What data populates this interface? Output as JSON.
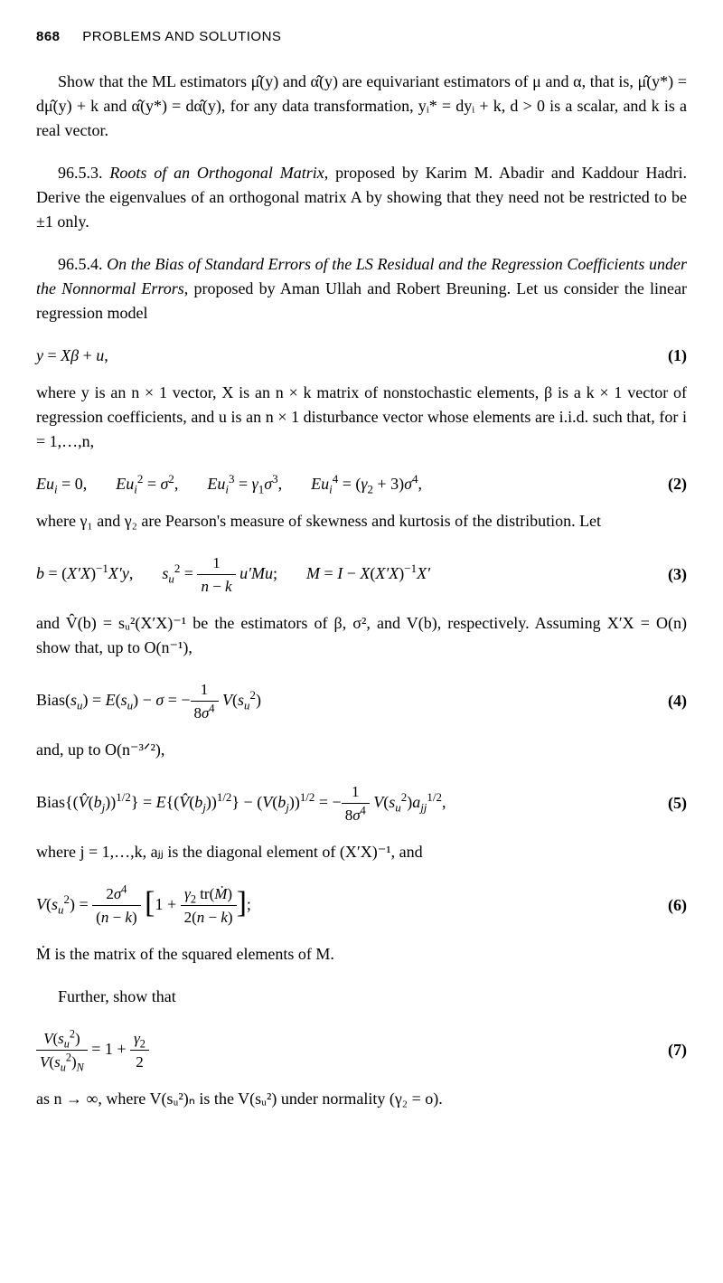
{
  "header": {
    "page_number": "868",
    "running_title": "PROBLEMS AND SOLUTIONS"
  },
  "para1": "Show that the ML estimators μ̂(y) and α̂(y) are equivariant estimators of μ and α, that is, μ̂(y*) = dμ̂(y) + k and α̂(y*) = dα̂(y), for any data transformation, yᵢ* = dyᵢ + k, d > 0 is a scalar, and k is a real vector.",
  "p9653_label": "96.5.3.",
  "p9653_title": "Roots of an Orthogonal Matrix",
  "p9653_body": ", proposed by Karim M. Abadir and Kaddour Hadri. Derive the eigenvalues of an orthogonal matrix A by showing that they need not be restricted to be ±1 only.",
  "p9654_label": "96.5.4.",
  "p9654_title": "On the Bias of Standard Errors of the LS Residual and the Regression Coefficients under the Nonnormal Errors",
  "p9654_body": ", proposed by Aman Ullah and Robert Breuning. Let us consider the linear regression model",
  "eq1_html": "<i>y</i> = <i>Xβ</i> + <i>u</i>,",
  "eq1_num": "(1)",
  "para_after1": "where y is an n × 1 vector, X is an n × k matrix of nonstochastic elements, β is a k × 1 vector of regression coefficients, and u is an n × 1 disturbance vector whose elements are i.i.d. such that, for i = 1,…,n,",
  "eq2_html": "<i>Eu<sub>i</sub></i> = 0,<span class=\"gap\"></span><i>Eu<sub>i</sub></i><sup>2</sup> = <i>σ</i><sup>2</sup>,<span class=\"gap\"></span><i>Eu<sub>i</sub></i><sup>3</sup> = <i>γ</i><sub>1</sub><i>σ</i><sup>3</sup>,<span class=\"gap\"></span><i>Eu<sub>i</sub></i><sup>4</sup> = (<i>γ</i><sub>2</sub> + 3)<i>σ</i><sup>4</sup>,",
  "eq2_num": "(2)",
  "para_after2": "where γ₁ and γ₂ are Pearson's measure of skewness and kurtosis of the distribution. Let",
  "eq3_html": "<i>b</i> = (<i>X′X</i>)<sup>−1</sup><i>X′y</i>,<span class=\"gap\"></span><i>s<sub>u</sub></i><sup>2</sup> = <span class=\"frac\"><span class=\"num\">1</span><span class=\"den\"><i>n</i> − <i>k</i></span></span>&nbsp;<i>u′Mu</i>;<span class=\"gap\"></span><i>M</i> = <i>I</i> − <i>X</i>(<i>X′X</i>)<sup>−1</sup><i>X′</i>",
  "eq3_num": "(3)",
  "para_after3": "and V̂(b) = sᵤ²(X′X)⁻¹ be the estimators of β, σ², and V(b), respectively. Assuming X′X = O(n) show that, up to O(n⁻¹),",
  "eq4_html": "Bias(<i>s<sub>u</sub></i>) = <i>E</i>(<i>s<sub>u</sub></i>) − <i>σ</i> = −<span class=\"frac\"><span class=\"num\">1</span><span class=\"den\">8<i>σ</i><sup>4</sup></span></span>&nbsp;<i>V</i>(<i>s<sub>u</sub></i><sup>2</sup>)",
  "eq4_num": "(4)",
  "para_after4": "and, up to O(n⁻³ᐟ²),",
  "eq5_html": "Bias{(<i>V̂</i>(<i>b<sub>j</sub></i>))<sup>1/2</sup>} = <i>E</i>{(<i>V̂</i>(<i>b<sub>j</sub></i>))<sup>1/2</sup>} − (<i>V</i>(<i>b<sub>j</sub></i>))<sup>1/2</sup> = −<span class=\"frac\"><span class=\"num\">1</span><span class=\"den\">8<i>σ</i><sup>4</sup></span></span>&nbsp;<i>V</i>(<i>s<sub>u</sub></i><sup>2</sup>)<i>a<sub>jj</sub></i><sup>1/2</sup>,",
  "eq5_num": "(5)",
  "para_after5": "where j = 1,…,k, aⱼⱼ is the diagonal element of (X′X)⁻¹, and",
  "eq6_html": "<i>V</i>(<i>s<sub>u</sub></i><sup>2</sup>) = <span class=\"frac\"><span class=\"num\">2<i>σ</i><sup>4</sup></span><span class=\"den\">(<i>n</i> − <i>k</i>)</span></span> <span class=\"bigbrack\">[</span>1 + <span class=\"frac\"><span class=\"num\"><i>γ</i><sub>2</sub>&nbsp;tr(<i>Ṁ</i>)</span><span class=\"den\">2(<i>n</i> − <i>k</i>)</span></span><span class=\"bigbrack\">]</span>;",
  "eq6_num": "(6)",
  "para_after6": "Ṁ is the matrix of the squared elements of M.",
  "para_further": "Further, show that",
  "eq7_html": "<span class=\"frac\"><span class=\"num\"><i>V</i>(<i>s<sub>u</sub></i><sup>2</sup>)</span><span class=\"den\"><i>V</i>(<i>s<sub>u</sub></i><sup>2</sup>)<sub><i>N</i></sub></span></span> = 1 + <span class=\"frac\"><span class=\"num\"><i>γ</i><sub>2</sub></span><span class=\"den\">2</span></span>",
  "eq7_num": "(7)",
  "para_last": "as n → ∞, where V(sᵤ²)ₙ is the V(sᵤ²) under normality (γ₂ = o)."
}
